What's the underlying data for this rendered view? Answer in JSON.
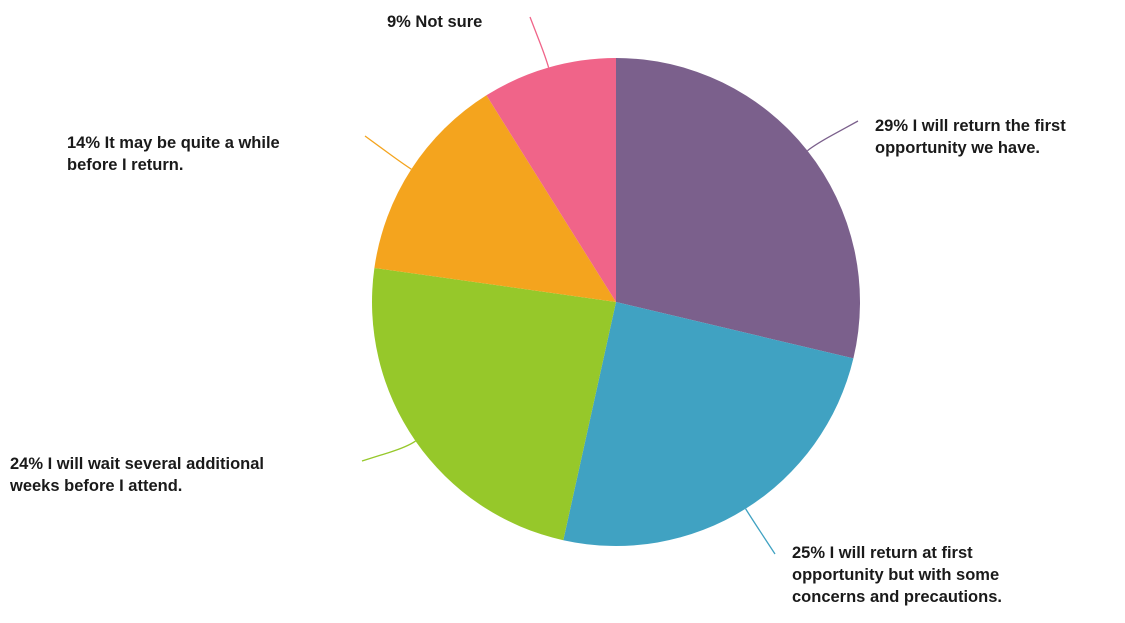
{
  "chart_data": {
    "type": "pie",
    "title": "",
    "start": "12 o'clock",
    "direction": "clockwise",
    "legend": "none",
    "slices": [
      {
        "value": 29,
        "label_lines": [
          "29% I will return the first",
          "opportunity we have."
        ],
        "color": "#7b608c"
      },
      {
        "value": 25,
        "label_lines": [
          "25% I will return at first",
          "opportunity but with some",
          "concerns and precautions."
        ],
        "color": "#40a2c2"
      },
      {
        "value": 24,
        "label_lines": [
          "24% I will wait several additional",
          "weeks before I attend."
        ],
        "color": "#96c82a"
      },
      {
        "value": 14,
        "label_lines": [
          "14% It may be quite a while",
          "before I return."
        ],
        "color": "#f4a41e"
      },
      {
        "value": 9,
        "label_lines": [
          "9% Not sure"
        ],
        "color": "#f06489"
      }
    ]
  }
}
